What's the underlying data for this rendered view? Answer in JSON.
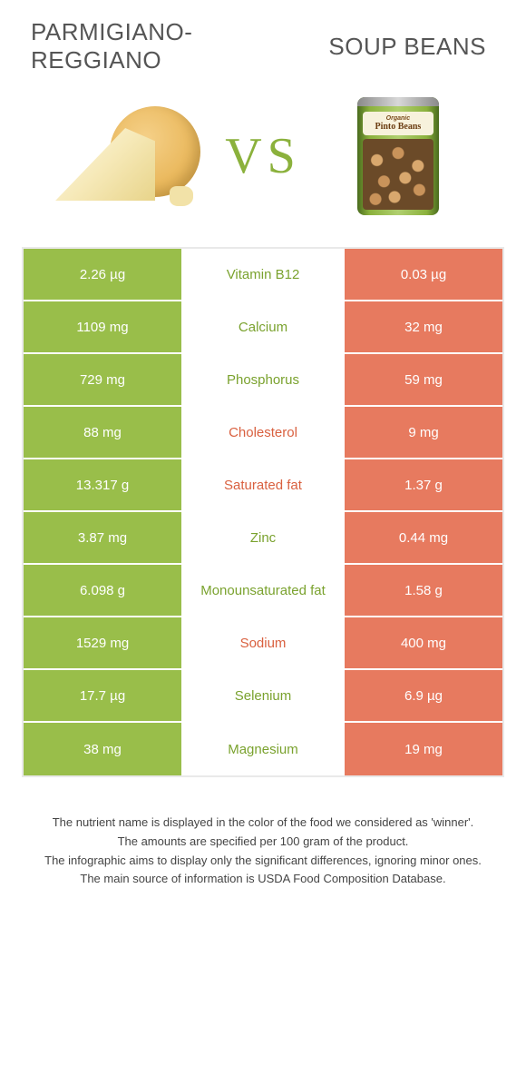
{
  "header": {
    "left_title": "PARMIGIANO-REGGIANO",
    "right_title": "SOUP BEANS",
    "vs": "VS"
  },
  "can_label": {
    "line1": "Organic",
    "line2": "Pinto Beans"
  },
  "colors": {
    "green": "#99be4a",
    "orange": "#e77a5f",
    "nutrient_green": "#7aa22e",
    "nutrient_orange": "#d9603f"
  },
  "rows": [
    {
      "nutrient": "Vitamin B12",
      "left": "2.26 µg",
      "right": "0.03 µg",
      "winner": "green"
    },
    {
      "nutrient": "Calcium",
      "left": "1109 mg",
      "right": "32 mg",
      "winner": "green"
    },
    {
      "nutrient": "Phosphorus",
      "left": "729 mg",
      "right": "59 mg",
      "winner": "green"
    },
    {
      "nutrient": "Cholesterol",
      "left": "88 mg",
      "right": "9 mg",
      "winner": "orange"
    },
    {
      "nutrient": "Saturated fat",
      "left": "13.317 g",
      "right": "1.37 g",
      "winner": "orange"
    },
    {
      "nutrient": "Zinc",
      "left": "3.87 mg",
      "right": "0.44 mg",
      "winner": "green"
    },
    {
      "nutrient": "Monounsaturated fat",
      "left": "6.098 g",
      "right": "1.58 g",
      "winner": "green"
    },
    {
      "nutrient": "Sodium",
      "left": "1529 mg",
      "right": "400 mg",
      "winner": "orange"
    },
    {
      "nutrient": "Selenium",
      "left": "17.7 µg",
      "right": "6.9 µg",
      "winner": "green"
    },
    {
      "nutrient": "Magnesium",
      "left": "38 mg",
      "right": "19 mg",
      "winner": "green"
    }
  ],
  "footnotes": [
    "The nutrient name is displayed in the color of the food we considered as 'winner'.",
    "The amounts are specified per 100 gram of the product.",
    "The infographic aims to display only the significant differences, ignoring minor ones.",
    "The main source of information is USDA Food Composition Database."
  ]
}
